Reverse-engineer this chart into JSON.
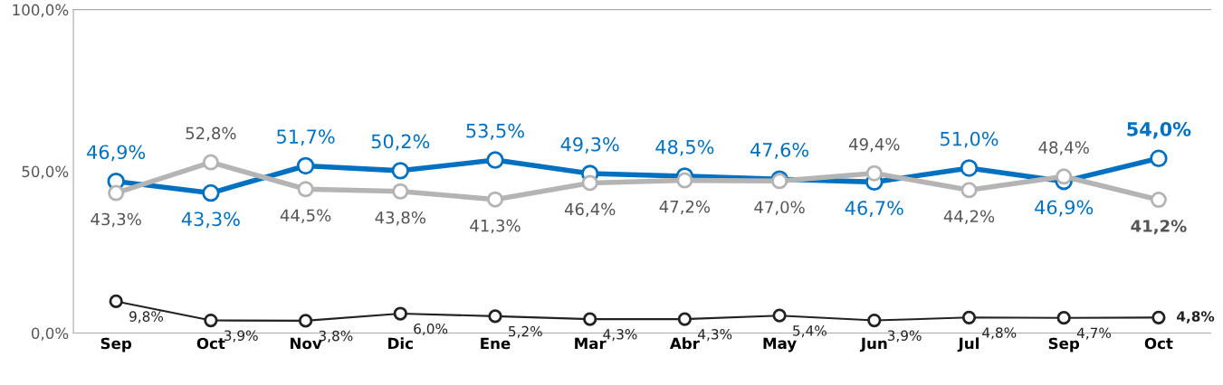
{
  "chart_data": {
    "type": "line",
    "categories": [
      "Sep",
      "Oct",
      "Nov",
      "Dic",
      "Ene",
      "Mar",
      "Abr",
      "May",
      "Jun",
      "Jul",
      "Sep",
      "Oct"
    ],
    "series": [
      {
        "color": "#0070c0",
        "values": [
          46.9,
          43.3,
          51.7,
          50.2,
          53.5,
          49.3,
          48.5,
          47.6,
          46.7,
          51.0,
          46.9,
          54.0
        ],
        "value_labels": [
          "46,9%",
          "43,3%",
          "51,7%",
          "50,2%",
          "53,5%",
          "49,3%",
          "48,5%",
          "47,6%",
          "46,7%",
          "51,0%",
          "46,9%",
          "54,0%"
        ]
      },
      {
        "color": "#b4b4b4",
        "values": [
          43.3,
          52.8,
          44.5,
          43.8,
          41.3,
          46.4,
          47.2,
          47.0,
          49.4,
          44.2,
          48.4,
          41.2
        ],
        "value_labels": [
          "43,3%",
          "52,8%",
          "44,5%",
          "43,8%",
          "41,3%",
          "46,4%",
          "47,2%",
          "47,0%",
          "49,4%",
          "44,2%",
          "48,4%",
          "41,2%"
        ]
      },
      {
        "color": "#222222",
        "values": [
          9.8,
          3.9,
          3.8,
          6.0,
          5.2,
          4.3,
          4.3,
          5.4,
          3.9,
          4.8,
          4.7,
          4.8
        ],
        "value_labels": [
          "9,8%",
          "3,9%",
          "3,8%",
          "6,0%",
          "5,2%",
          "4,3%",
          "4,3%",
          "5,4%",
          "3,9%",
          "4,8%",
          "4,7%",
          "4,8%"
        ]
      }
    ],
    "ylim": [
      0,
      100
    ],
    "yticks": [
      {
        "value": 0,
        "label": "0,0%"
      },
      {
        "value": 50,
        "label": "50,0%"
      },
      {
        "value": 100,
        "label": "100,0%"
      }
    ],
    "marker": "circle",
    "line_style": "solid",
    "grid": false,
    "legend": false
  }
}
